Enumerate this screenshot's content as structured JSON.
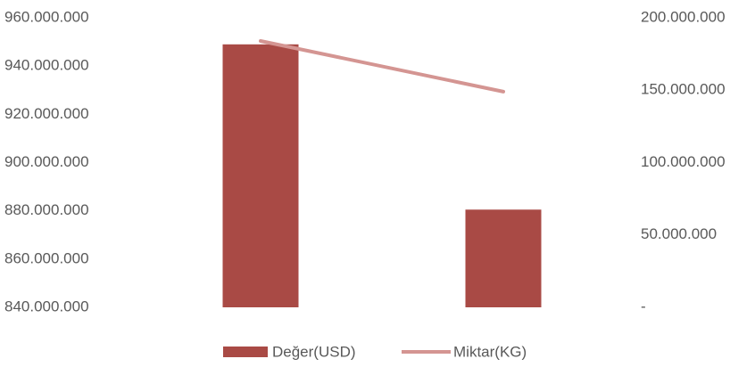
{
  "chart_data": {
    "type": "bar",
    "categories": [
      null,
      null
    ],
    "series": [
      {
        "name": "Değer(USD)",
        "color": "#a94a45",
        "values": [
          949000000,
          880500000
        ]
      },
      {
        "name": "Miktar(KG)",
        "color": "#d49592",
        "type": "line",
        "axis": "y2",
        "values": [
          184000000,
          149000000
        ]
      }
    ],
    "ylim": [
      840000000,
      960000000
    ],
    "yticks": [
      {
        "value": 840000000,
        "label": "840.000.000"
      },
      {
        "value": 860000000,
        "label": "860.000.000"
      },
      {
        "value": 880000000,
        "label": "880.000.000"
      },
      {
        "value": 900000000,
        "label": "900.000.000"
      },
      {
        "value": 920000000,
        "label": "920.000.000"
      },
      {
        "value": 940000000,
        "label": "940.000.000"
      },
      {
        "value": 960000000,
        "label": "960.000.000"
      }
    ],
    "y2lim": [
      0,
      200000000
    ],
    "y2ticks": [
      {
        "value": 0,
        "label": "-"
      },
      {
        "value": 50000000,
        "label": "50.000.000"
      },
      {
        "value": 100000000,
        "label": "100.000.000"
      },
      {
        "value": 150000000,
        "label": "150.000.000"
      },
      {
        "value": 200000000,
        "label": "200.000.000"
      }
    ],
    "grid": false,
    "legend": "bottom"
  }
}
